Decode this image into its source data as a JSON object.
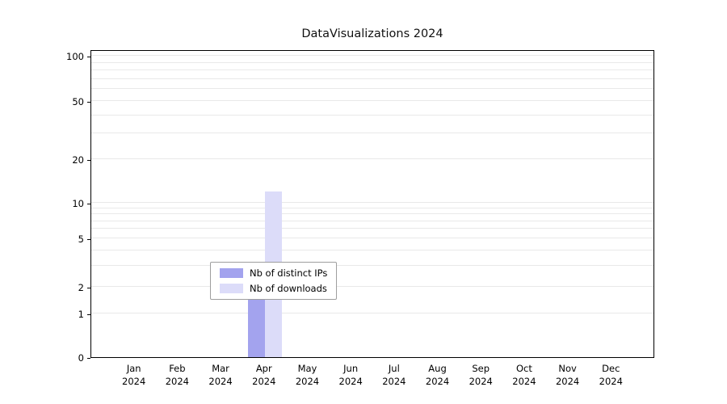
{
  "chart_data": {
    "type": "bar",
    "title": "DataVisualizations 2024",
    "xlabel": "",
    "ylabel": "",
    "yscale": "symlog",
    "yticks": [
      0,
      1,
      2,
      5,
      10,
      20,
      50,
      100
    ],
    "ylim": [
      0,
      110
    ],
    "grid": "horizontal, major and log-minor, light gray",
    "legend_position": "lower center inside plot",
    "year_label": "2024",
    "categories": [
      "Jan",
      "Feb",
      "Mar",
      "Apr",
      "May",
      "Jun",
      "Jul",
      "Aug",
      "Sep",
      "Oct",
      "Nov",
      "Dec"
    ],
    "series": [
      {
        "name": "Nb of distinct IPs",
        "color": "#a3a3ee",
        "values": [
          0,
          0,
          0,
          2,
          0,
          0,
          0,
          0,
          0,
          0,
          0,
          0
        ]
      },
      {
        "name": "Nb of downloads",
        "color": "#dcdcf9",
        "values": [
          0,
          0,
          0,
          12,
          0,
          0,
          0,
          0,
          0,
          0,
          0,
          0
        ]
      }
    ]
  }
}
